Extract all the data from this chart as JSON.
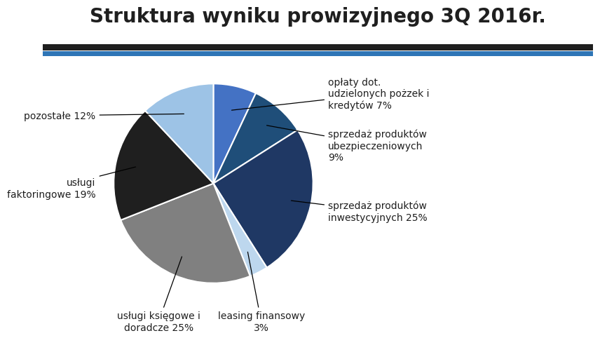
{
  "title": "Struktura wyniku prowizyjnego 3Q 2016r.",
  "slices": [
    {
      "label": "opłaty dot.\nudzielonych pożzek i\nkredytów 7%",
      "value": 7,
      "color": "#4472C4"
    },
    {
      "label": "sprzedaż produktów\nubezpieczeniowych\n9%",
      "value": 9,
      "color": "#1F4E79"
    },
    {
      "label": "sprzedaż produktów\ninwestycyjnych 25%",
      "value": 25,
      "color": "#1F3864"
    },
    {
      "label": "leasing finansowy\n3%",
      "value": 3,
      "color": "#BDD7EE"
    },
    {
      "label": "usługi księgowe i\ndoradcze 25%",
      "value": 25,
      "color": "#808080"
    },
    {
      "label": "usługi\nfaktoringowe 19%",
      "value": 19,
      "color": "#1F1F1F"
    },
    {
      "label": "pozostałe 12%",
      "value": 12,
      "color": "#9DC3E6"
    }
  ],
  "background_color": "#FFFFFF",
  "title_fontsize": 20,
  "label_fontsize": 10,
  "top_bar_color1": "#1F1F1F",
  "top_bar_color2": "#2E75B6"
}
